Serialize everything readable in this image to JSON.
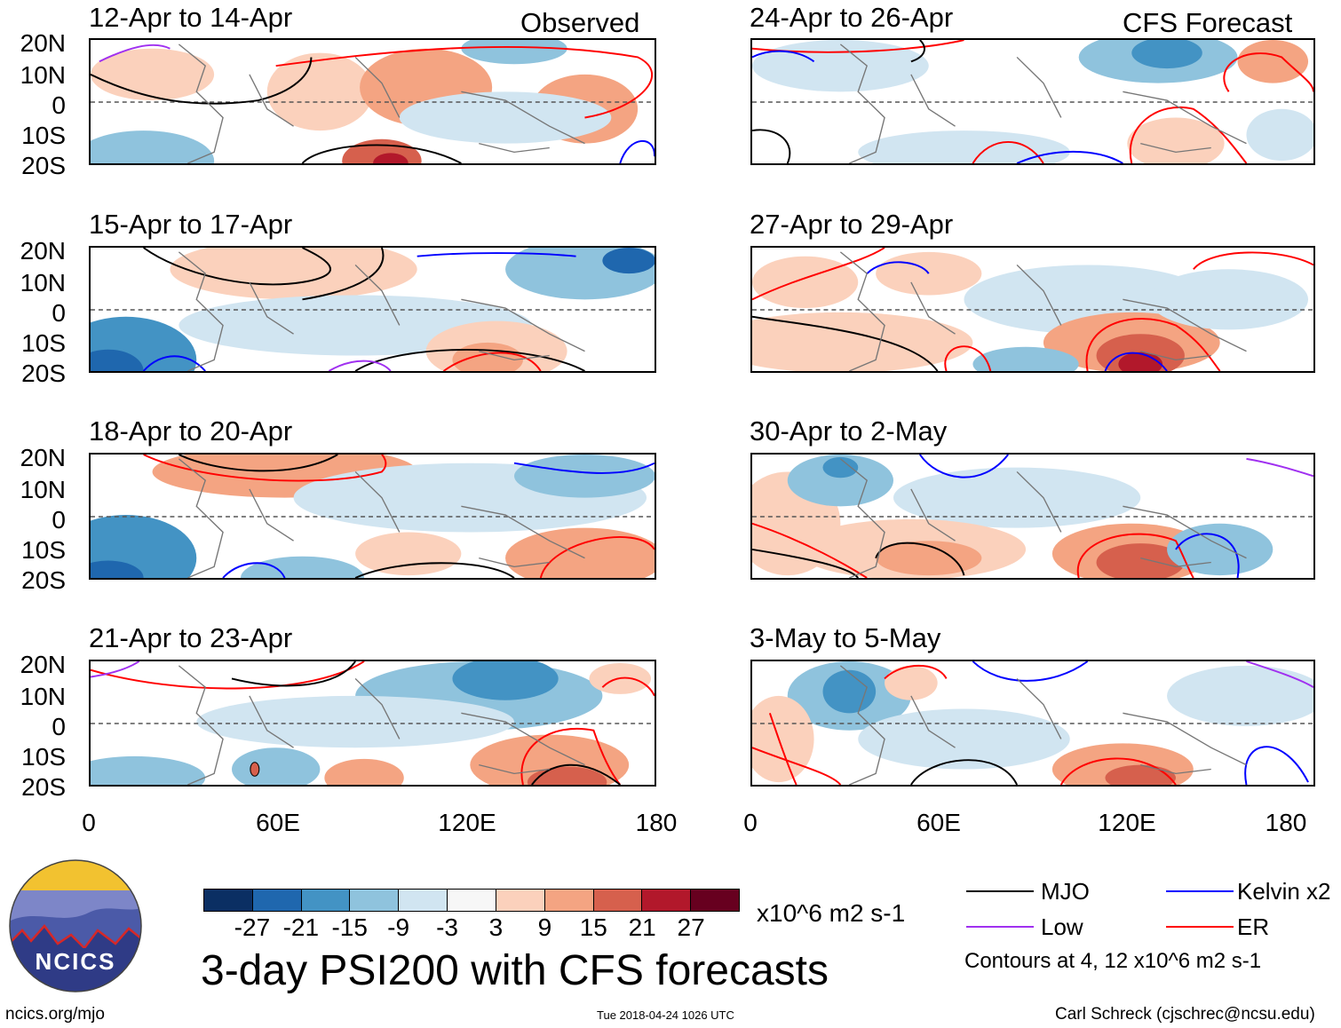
{
  "panels": {
    "left": [
      {
        "title": "12-Apr to 14-Apr",
        "corner": "Observed"
      },
      {
        "title": "15-Apr to 17-Apr"
      },
      {
        "title": "18-Apr to 20-Apr"
      },
      {
        "title": "21-Apr to 23-Apr"
      }
    ],
    "right": [
      {
        "title": "24-Apr to 26-Apr",
        "corner": "CFS Forecast"
      },
      {
        "title": "27-Apr to 29-Apr"
      },
      {
        "title": "30-Apr to 2-May"
      },
      {
        "title": "3-May to 5-May"
      }
    ]
  },
  "axes": {
    "lat_labels": [
      "20N",
      "10N",
      "0",
      "10S",
      "20S"
    ],
    "lon_labels": [
      "0",
      "60E",
      "120E",
      "180"
    ]
  },
  "colorbar": {
    "colors": [
      "#0b2f63",
      "#1f67ae",
      "#4393c4",
      "#8fc3dd",
      "#d1e5f1",
      "#f7f7f7",
      "#fbd1bc",
      "#f4a482",
      "#d6604d",
      "#b2182b",
      "#67001f"
    ],
    "ticks": [
      "-27",
      "-21",
      "-15",
      "-9",
      "-3",
      "3",
      "9",
      "15",
      "21",
      "27"
    ],
    "units": "x10^6 m2 s-1"
  },
  "title": "3-day PSI200 with CFS forecasts",
  "legend": {
    "items": [
      {
        "label": "MJO",
        "color": "#000000"
      },
      {
        "label": "Kelvin x2",
        "color": "#0000ff"
      },
      {
        "label": "Low",
        "color": "#a030f0"
      },
      {
        "label": "ER",
        "color": "#ff0000"
      }
    ],
    "note": "Contours at 4, 12 x10^6 m2 s-1"
  },
  "logo": {
    "text": "NCICS"
  },
  "footer": {
    "url": "ncics.org/mjo",
    "timestamp": "Tue 2018-04-24 1026 UTC",
    "credit": "Carl Schreck (cjschrec@ncsu.edu)"
  }
}
